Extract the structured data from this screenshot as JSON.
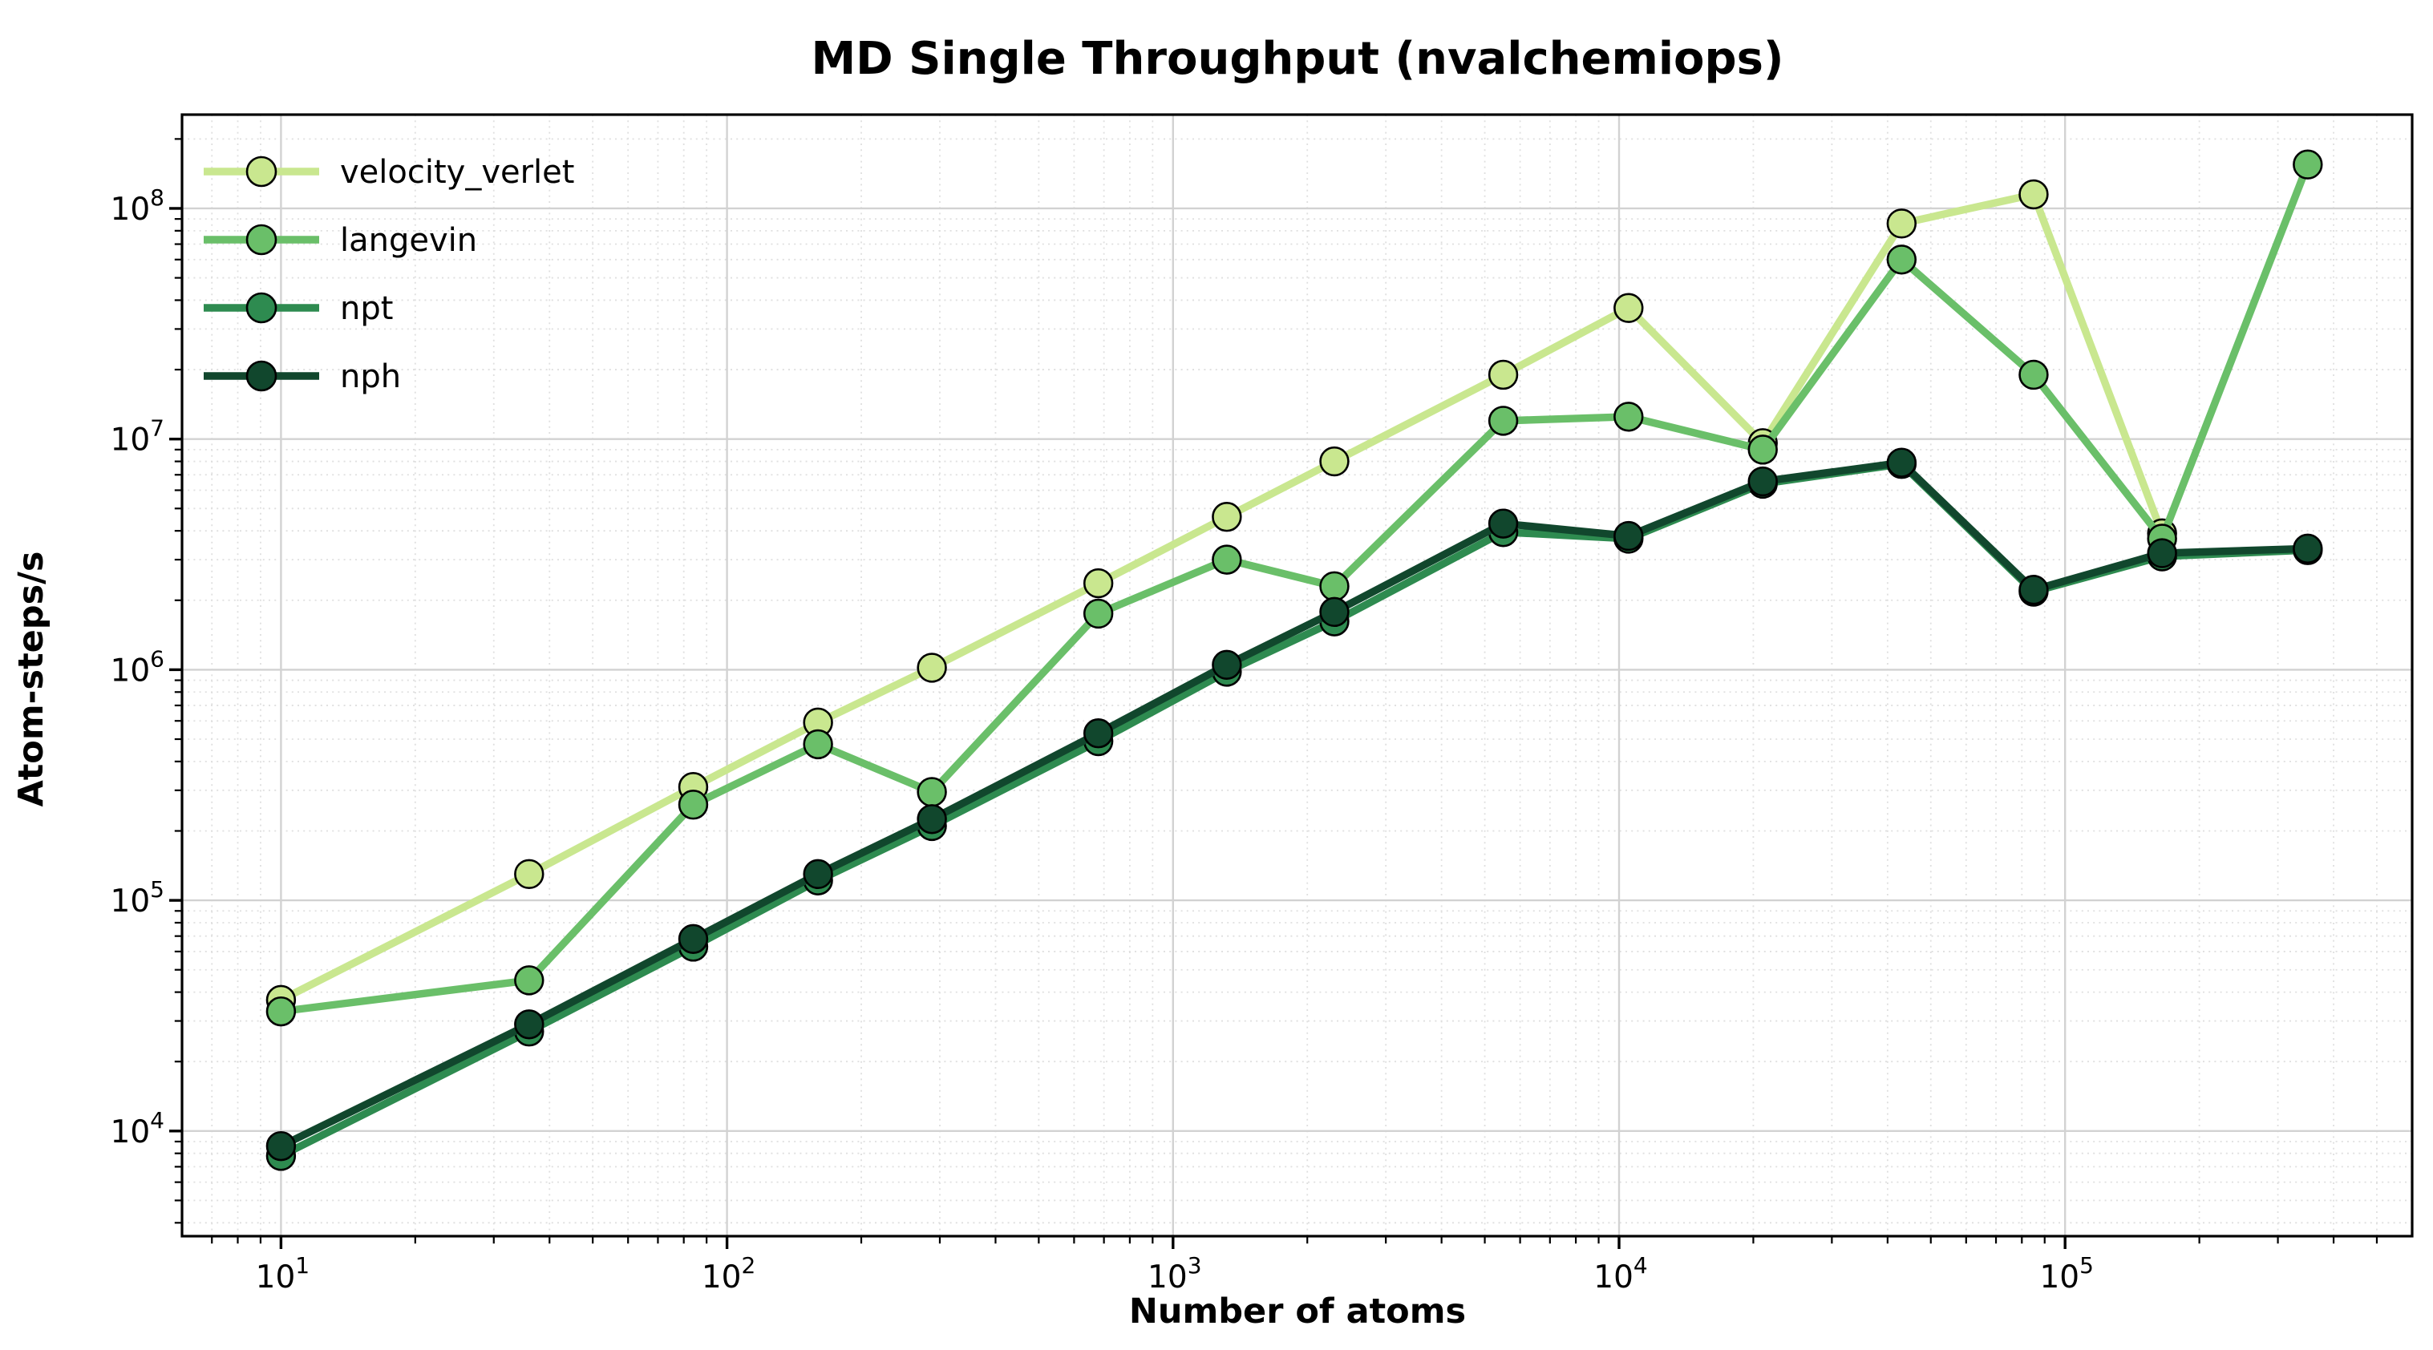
{
  "chart_data": {
    "type": "line",
    "title": "MD Single Throughput (nvalchemiops)",
    "xlabel": "Number of atoms",
    "ylabel": "Atom-steps/s",
    "x_scale": "log",
    "y_scale": "log",
    "xlim": [
      6,
      600000
    ],
    "ylim": [
      3500,
      255000000
    ],
    "x_tick_exponents": [
      1,
      2,
      3,
      4,
      5
    ],
    "y_tick_exponents": [
      4,
      5,
      6,
      7,
      8
    ],
    "grid": {
      "major": true,
      "minor": true
    },
    "legend_position": "upper-left",
    "series": [
      {
        "name": "velocity_verlet",
        "color": "#c9e78f",
        "points": [
          [
            10,
            37000
          ],
          [
            36,
            130000
          ],
          [
            84,
            310000
          ],
          [
            160,
            590000
          ],
          [
            288,
            1020000
          ],
          [
            680,
            2370000
          ],
          [
            1320,
            4600000
          ],
          [
            2300,
            8000000
          ],
          [
            5500,
            19000000
          ],
          [
            10500,
            37000000
          ],
          [
            21000,
            9600000
          ],
          [
            43000,
            86000000
          ],
          [
            85000,
            115000000
          ],
          [
            165000,
            3900000
          ]
        ]
      },
      {
        "name": "langevin",
        "color": "#6abf69",
        "points": [
          [
            10,
            33000
          ],
          [
            36,
            45000
          ],
          [
            84,
            260000
          ],
          [
            160,
            475000
          ],
          [
            288,
            295000
          ],
          [
            680,
            1750000
          ],
          [
            1320,
            3000000
          ],
          [
            2300,
            2300000
          ],
          [
            5500,
            12000000
          ],
          [
            10500,
            12500000
          ],
          [
            21000,
            9000000
          ],
          [
            43000,
            60000000
          ],
          [
            85000,
            19000000
          ],
          [
            165000,
            3700000
          ],
          [
            350000,
            155000000
          ]
        ]
      },
      {
        "name": "npt",
        "color": "#2e8b50",
        "points": [
          [
            10,
            7800
          ],
          [
            36,
            27000
          ],
          [
            84,
            63000
          ],
          [
            160,
            122000
          ],
          [
            288,
            210000
          ],
          [
            680,
            490000
          ],
          [
            1320,
            980000
          ],
          [
            2300,
            1620000
          ],
          [
            5500,
            3950000
          ],
          [
            10500,
            3700000
          ],
          [
            21000,
            6400000
          ],
          [
            43000,
            7800000
          ],
          [
            85000,
            2180000
          ],
          [
            165000,
            3100000
          ],
          [
            350000,
            3300000
          ]
        ]
      },
      {
        "name": "nph",
        "color": "#11472d",
        "points": [
          [
            10,
            8600
          ],
          [
            36,
            29000
          ],
          [
            84,
            68000
          ],
          [
            160,
            130000
          ],
          [
            288,
            225000
          ],
          [
            680,
            530000
          ],
          [
            1320,
            1050000
          ],
          [
            2300,
            1780000
          ],
          [
            5500,
            4300000
          ],
          [
            10500,
            3800000
          ],
          [
            21000,
            6550000
          ],
          [
            43000,
            7900000
          ],
          [
            85000,
            2220000
          ],
          [
            165000,
            3200000
          ],
          [
            350000,
            3350000
          ]
        ]
      }
    ],
    "style": {
      "spine_color": "#000000",
      "major_grid_color": "#d2d2d2",
      "minor_grid_color": "#dfdfdf",
      "background": "#ffffff",
      "line_width": 4.7,
      "marker_radius": 8.7,
      "marker_edge_color": "#000000"
    }
  }
}
